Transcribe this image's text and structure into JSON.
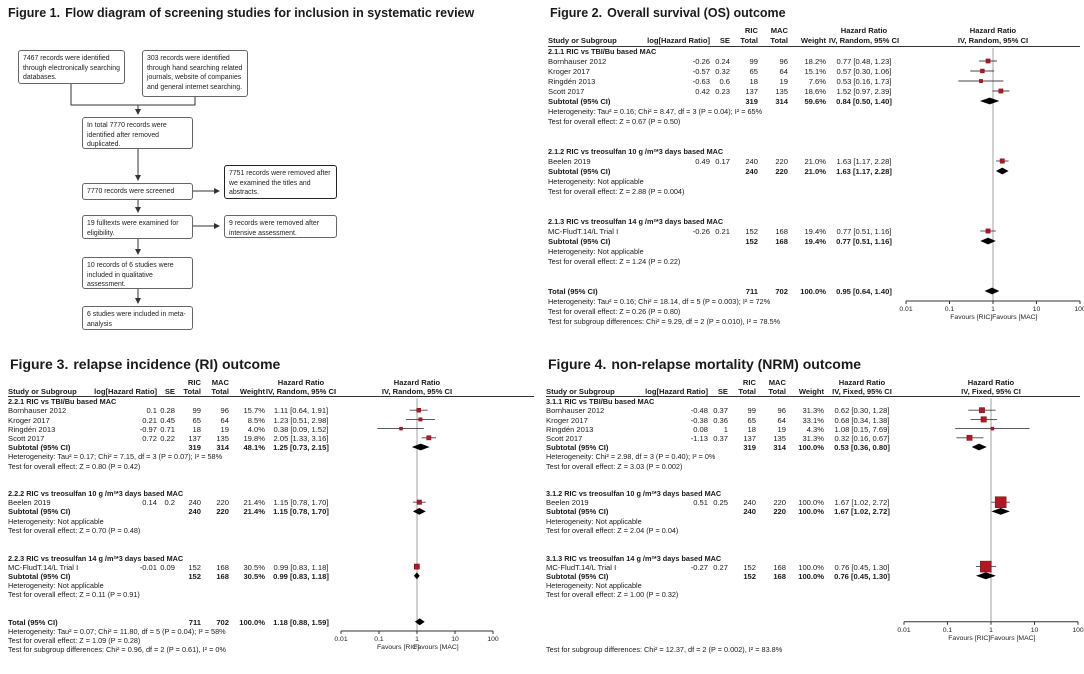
{
  "colors": {
    "marker_red": "#b01823",
    "marker_red_border": "#7a0c12",
    "diamond_black": "#000000",
    "axis": "#333333",
    "ci_line": "#444444",
    "guide_line": "#8a8a8a"
  },
  "figures": {
    "fig1": {
      "label": "Figure 1.",
      "title": "Flow diagram of screening studies for inclusion in systematic review",
      "boxes": [
        "7467 records were identified through electronically searching databases.",
        "303 records were identified through hand searching related journals, website of companies and general internet searching.",
        "In total 7770 records were identified after removed duplicated.",
        "7770 records were screened",
        "7751 records were removed after we examined the titles and abstracts.",
        "19 fulltexts were examined for eligibility.",
        "9 records were removed after intensive assessment.",
        "10 records of 6 studies were included in qualitative assessment.",
        "6 studies were included in meta-analysis"
      ]
    },
    "fig2": {
      "label": "Figure 2.",
      "title": "Overall survival (OS) outcome",
      "header": {
        "study": "Study or Subgroup",
        "loghr": "log[Hazard Ratio]",
        "se": "SE",
        "ric": "RIC",
        "mac": "MAC",
        "total": "Total",
        "weight": "Weight",
        "hr": "Hazard Ratio",
        "model": "IV, Random, 95% CI"
      },
      "groups": [
        {
          "name": "2.1.1 RIC vs TBI/Bu based MAC",
          "studies": [
            {
              "study": "Bornhauser 2012",
              "loghr": "-0.26",
              "se": "0.24",
              "ric": "99",
              "mac": "96",
              "weight": "18.2%",
              "ci": "0.77 [0.48, 1.23]",
              "est": 0.77,
              "lo": 0.48,
              "hi": 1.23,
              "w": 18.2
            },
            {
              "study": "Kroger 2017",
              "loghr": "-0.57",
              "se": "0.32",
              "ric": "65",
              "mac": "64",
              "weight": "15.1%",
              "ci": "0.57 [0.30, 1.06]",
              "est": 0.57,
              "lo": 0.3,
              "hi": 1.06,
              "w": 15.1
            },
            {
              "study": "Ringdén 2013",
              "loghr": "-0.63",
              "se": "0.6",
              "ric": "18",
              "mac": "19",
              "weight": "7.6%",
              "ci": "0.53 [0.16, 1.73]",
              "est": 0.53,
              "lo": 0.16,
              "hi": 1.73,
              "w": 7.6
            },
            {
              "study": "Scott 2017",
              "loghr": "0.42",
              "se": "0.23",
              "ric": "137",
              "mac": "135",
              "weight": "18.6%",
              "ci": "1.52 [0.97, 2.39]",
              "est": 1.52,
              "lo": 0.97,
              "hi": 2.39,
              "w": 18.6
            }
          ],
          "subtotal": {
            "label": "Subtotal (95% CI)",
            "ric": "319",
            "mac": "314",
            "weight": "59.6%",
            "ci": "0.84 [0.50, 1.40]",
            "est": 0.84,
            "lo": 0.5,
            "hi": 1.4
          },
          "notes": [
            "Heterogeneity: Tau² = 0.16; Chi² = 8.47, df = 3 (P = 0.04); I² = 65%",
            "Test for overall effect: Z = 0.67 (P = 0.50)"
          ]
        },
        {
          "name": "2.1.2 RIC vs treosulfan 10 g /m²*3 days based MAC",
          "studies": [
            {
              "study": "Beelen 2019",
              "loghr": "0.49",
              "se": "0.17",
              "ric": "240",
              "mac": "220",
              "weight": "21.0%",
              "ci": "1.63 [1.17, 2.28]",
              "est": 1.63,
              "lo": 1.17,
              "hi": 2.28,
              "w": 21.0
            }
          ],
          "subtotal": {
            "label": "Subtotal (95% CI)",
            "ric": "240",
            "mac": "220",
            "weight": "21.0%",
            "ci": "1.63 [1.17, 2.28]",
            "est": 1.63,
            "lo": 1.17,
            "hi": 2.28
          },
          "notes": [
            "Heterogeneity: Not applicable",
            "Test for overall effect: Z = 2.88 (P = 0.004)"
          ]
        },
        {
          "name": "2.1.3 RIC vs treosulfan 14 g /m²*3 days based MAC",
          "studies": [
            {
              "study": "MC-FludT.14/L Trial I",
              "loghr": "-0.26",
              "se": "0.21",
              "ric": "152",
              "mac": "168",
              "weight": "19.4%",
              "ci": "0.77 [0.51, 1.16]",
              "est": 0.77,
              "lo": 0.51,
              "hi": 1.16,
              "w": 19.4
            }
          ],
          "subtotal": {
            "label": "Subtotal (95% CI)",
            "ric": "152",
            "mac": "168",
            "weight": "19.4%",
            "ci": "0.77 [0.51, 1.16]",
            "est": 0.77,
            "lo": 0.51,
            "hi": 1.16
          },
          "notes": [
            "Heterogeneity: Not applicable",
            "Test for overall effect: Z = 1.24 (P = 0.22)"
          ]
        }
      ],
      "total": {
        "label": "Total (95% CI)",
        "ric": "711",
        "mac": "702",
        "weight": "100.0%",
        "ci": "0.95 [0.64, 1.40]",
        "est": 0.95,
        "lo": 0.64,
        "hi": 1.4
      },
      "total_notes": [
        "Heterogeneity: Tau² = 0.16; Chi² = 18.14, df = 5 (P = 0.003); I² = 72%",
        "Test for overall effect: Z = 0.26 (P = 0.80)",
        "Test for subgroup differences: Chi² = 9.29, df = 2 (P = 0.010), I² = 78.5%"
      ],
      "axis": {
        "ticks": [
          "0.01",
          "0.1",
          "1",
          "10",
          "100"
        ],
        "favours_left": "Favours [RIC]",
        "favours_right": "Favours [MAC]"
      }
    },
    "fig3": {
      "label": "Figure 3.",
      "title": "relapse incidence (RI) outcome",
      "header": {
        "study": "Study or Subgroup",
        "loghr": "log[Hazard Ratio]",
        "se": "SE",
        "ric": "RIC",
        "mac": "MAC",
        "total": "Total",
        "weight": "Weight",
        "hr": "Hazard Ratio",
        "model": "IV, Random, 95% CI"
      },
      "groups": [
        {
          "name": "2.2.1 RIC vs TBI/Bu based MAC",
          "studies": [
            {
              "study": "Bornhauser 2012",
              "loghr": "0.1",
              "se": "0.28",
              "ric": "99",
              "mac": "96",
              "weight": "15.7%",
              "ci": "1.11 [0.64, 1.91]",
              "est": 1.11,
              "lo": 0.64,
              "hi": 1.91,
              "w": 15.7
            },
            {
              "study": "Kroger 2017",
              "loghr": "0.21",
              "se": "0.45",
              "ric": "65",
              "mac": "64",
              "weight": "8.5%",
              "ci": "1.23 [0.51, 2.98]",
              "est": 1.23,
              "lo": 0.51,
              "hi": 2.98,
              "w": 8.5
            },
            {
              "study": "Ringdén 2013",
              "loghr": "-0.97",
              "se": "0.71",
              "ric": "18",
              "mac": "19",
              "weight": "4.0%",
              "ci": "0.38 [0.09, 1.52]",
              "est": 0.38,
              "lo": 0.09,
              "hi": 1.52,
              "w": 4.0
            },
            {
              "study": "Scott 2017",
              "loghr": "0.72",
              "se": "0.22",
              "ric": "137",
              "mac": "135",
              "weight": "19.8%",
              "ci": "2.05 [1.33, 3.16]",
              "est": 2.05,
              "lo": 1.33,
              "hi": 3.16,
              "w": 19.8
            }
          ],
          "subtotal": {
            "label": "Subtotal (95% CI)",
            "ric": "319",
            "mac": "314",
            "weight": "48.1%",
            "ci": "1.25 [0.73, 2.15]",
            "est": 1.25,
            "lo": 0.73,
            "hi": 2.15
          },
          "notes": [
            "Heterogeneity: Tau² = 0.17; Chi² = 7.15, df = 3 (P = 0.07); I² = 58%",
            "Test for overall effect: Z = 0.80 (P = 0.42)"
          ]
        },
        {
          "name": "2.2.2 RIC vs treosulfan 10 g /m²*3 days based MAC",
          "studies": [
            {
              "study": "Beelen 2019",
              "loghr": "0.14",
              "se": "0.2",
              "ric": "240",
              "mac": "220",
              "weight": "21.4%",
              "ci": "1.15 [0.78, 1.70]",
              "est": 1.15,
              "lo": 0.78,
              "hi": 1.7,
              "w": 21.4
            }
          ],
          "subtotal": {
            "label": "Subtotal (95% CI)",
            "ric": "240",
            "mac": "220",
            "weight": "21.4%",
            "ci": "1.15 [0.78, 1.70]",
            "est": 1.15,
            "lo": 0.78,
            "hi": 1.7
          },
          "notes": [
            "Heterogeneity: Not applicable",
            "Test for overall effect: Z = 0.70 (P = 0.48)"
          ]
        },
        {
          "name": "2.2.3 RIC vs treosulfan 14 g /m²*3 days based MAC",
          "studies": [
            {
              "study": "MC-FludT.14/L Trial I",
              "loghr": "-0.01",
              "se": "0.09",
              "ric": "152",
              "mac": "168",
              "weight": "30.5%",
              "ci": "0.99 [0.83, 1.18]",
              "est": 0.99,
              "lo": 0.83,
              "hi": 1.18,
              "w": 30.5
            }
          ],
          "subtotal": {
            "label": "Subtotal (95% CI)",
            "ric": "152",
            "mac": "168",
            "weight": "30.5%",
            "ci": "0.99 [0.83, 1.18]",
            "est": 0.99,
            "lo": 0.83,
            "hi": 1.18
          },
          "notes": [
            "Heterogeneity: Not applicable",
            "Test for overall effect: Z = 0.11 (P = 0.91)"
          ]
        }
      ],
      "total": {
        "label": "Total (95% CI)",
        "ric": "711",
        "mac": "702",
        "weight": "100.0%",
        "ci": "1.18 [0.88, 1.59]",
        "est": 1.18,
        "lo": 0.88,
        "hi": 1.59
      },
      "total_notes": [
        "Heterogeneity: Tau² = 0.07; Chi² = 11.80, df = 5 (P = 0.04); I² = 58%",
        "Test for overall effect: Z = 1.09 (P = 0.28)",
        "Test for subgroup differences: Chi² = 0.96, df = 2 (P = 0.61), I² = 0%"
      ],
      "axis": {
        "ticks": [
          "0.01",
          "0.1",
          "1",
          "10",
          "100"
        ],
        "favours_left": "Favours [RIC]",
        "favours_right": "Favours [MAC]"
      }
    },
    "fig4": {
      "label": "Figure 4.",
      "title": "non-relapse mortality (NRM) outcome",
      "header": {
        "study": "Study or Subgroup",
        "loghr": "log[Hazard Ratio]",
        "se": "SE",
        "ric": "RIC",
        "mac": "MAC",
        "total": "Total",
        "weight": "Weight",
        "hr": "Hazard Ratio",
        "model": "IV, Fixed, 95% CI"
      },
      "groups": [
        {
          "name": "3.1.1 RIC vs TBI/Bu based MAC",
          "studies": [
            {
              "study": "Bornhauser 2012",
              "loghr": "-0.48",
              "se": "0.37",
              "ric": "99",
              "mac": "96",
              "weight": "31.3%",
              "ci": "0.62 [0.30, 1.28]",
              "est": 0.62,
              "lo": 0.3,
              "hi": 1.28,
              "w": 31.3
            },
            {
              "study": "Kroger 2017",
              "loghr": "-0.38",
              "se": "0.36",
              "ric": "65",
              "mac": "64",
              "weight": "33.1%",
              "ci": "0.68 [0.34, 1.38]",
              "est": 0.68,
              "lo": 0.34,
              "hi": 1.38,
              "w": 33.1
            },
            {
              "study": "Ringdén 2013",
              "loghr": "0.08",
              "se": "1",
              "ric": "18",
              "mac": "19",
              "weight": "4.3%",
              "ci": "1.08 [0.15, 7.69]",
              "est": 1.08,
              "lo": 0.15,
              "hi": 7.69,
              "w": 4.3
            },
            {
              "study": "Scott 2017",
              "loghr": "-1.13",
              "se": "0.37",
              "ric": "137",
              "mac": "135",
              "weight": "31.3%",
              "ci": "0.32 [0.16, 0.67]",
              "est": 0.32,
              "lo": 0.16,
              "hi": 0.67,
              "w": 31.3
            }
          ],
          "subtotal": {
            "label": "Subtotal (95% CI)",
            "ric": "319",
            "mac": "314",
            "weight": "100.0%",
            "ci": "0.53 [0.36, 0.80]",
            "est": 0.53,
            "lo": 0.36,
            "hi": 0.8
          },
          "notes": [
            "Heterogeneity: Chi² = 2.98, df = 3 (P = 0.40); I² = 0%",
            "Test for overall effect: Z = 3.03 (P = 0.002)"
          ]
        },
        {
          "name": "3.1.2 RIC vs treosulfan 10 g /m²*3 days based MAC",
          "studies": [
            {
              "study": "Beelen 2019",
              "loghr": "0.51",
              "se": "0.25",
              "ric": "240",
              "mac": "220",
              "weight": "100.0%",
              "ci": "1.67 [1.02, 2.72]",
              "est": 1.67,
              "lo": 1.02,
              "hi": 2.72,
              "w": 100
            }
          ],
          "subtotal": {
            "label": "Subtotal (95% CI)",
            "ric": "240",
            "mac": "220",
            "weight": "100.0%",
            "ci": "1.67 [1.02, 2.72]",
            "est": 1.67,
            "lo": 1.02,
            "hi": 2.72
          },
          "notes": [
            "Heterogeneity: Not applicable",
            "Test for overall effect: Z = 2.04 (P = 0.04)"
          ]
        },
        {
          "name": "3.1.3 RIC vs treosulfan 14 g /m²*3 days based MAC",
          "studies": [
            {
              "study": "MC-FludT.14/L Trial I",
              "loghr": "-0.27",
              "se": "0.27",
              "ric": "152",
              "mac": "168",
              "weight": "100.0%",
              "ci": "0.76 [0.45, 1.30]",
              "est": 0.76,
              "lo": 0.45,
              "hi": 1.3,
              "w": 100
            }
          ],
          "subtotal": {
            "label": "Subtotal (95% CI)",
            "ric": "152",
            "mac": "168",
            "weight": "100.0%",
            "ci": "0.76 [0.45, 1.30]",
            "est": 0.76,
            "lo": 0.45,
            "hi": 1.3
          },
          "notes": [
            "Heterogeneity: Not applicable",
            "Test for overall effect: Z = 1.00 (P = 0.32)"
          ]
        }
      ],
      "total": null,
      "total_notes": [
        "Test for subgroup differences: Chi² = 12.37, df = 2 (P = 0.002), I² = 83.8%"
      ],
      "axis": {
        "ticks": [
          "0.01",
          "0.1",
          "1",
          "10",
          "100"
        ],
        "favours_left": "Favours [RIC]",
        "favours_right": "Favours [MAC]"
      }
    }
  }
}
